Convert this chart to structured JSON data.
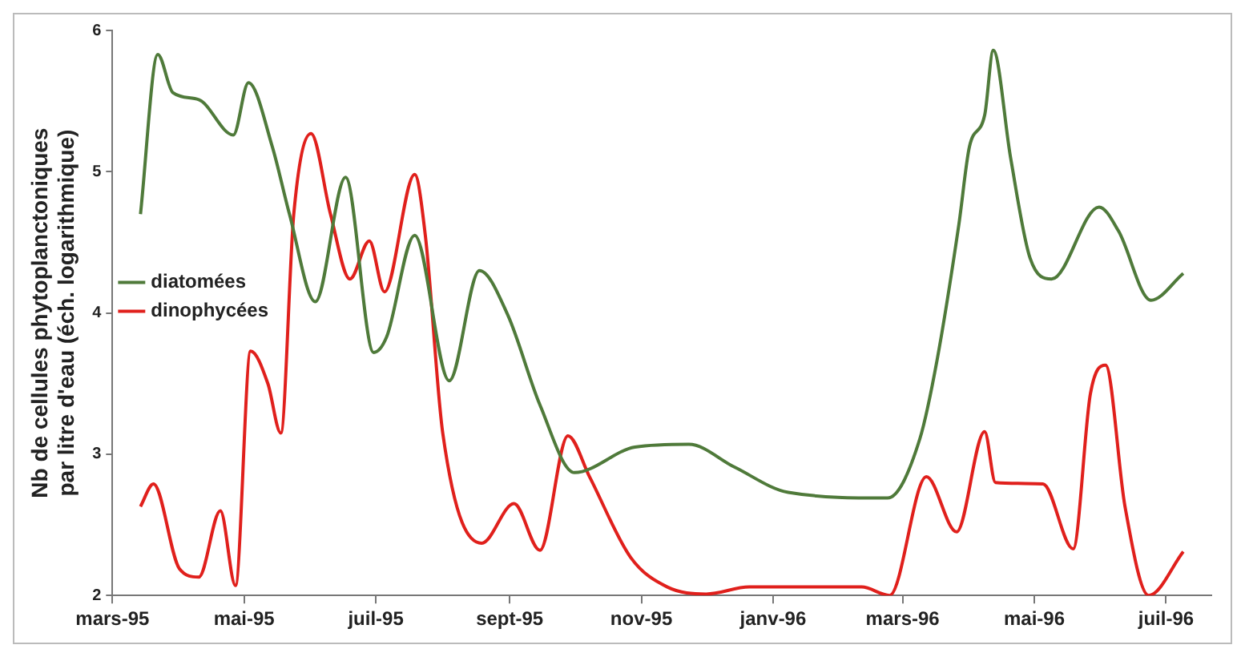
{
  "chart_data": {
    "type": "line",
    "ylabel": "Nb de cellules phytoplanctoniques par litre d'eau (éch. logarithmique)",
    "xlim": [
      "1995-03-01",
      "1996-07-22"
    ],
    "xticks": [
      {
        "value": "1995-03-01",
        "label": "mars-95"
      },
      {
        "value": "1995-05-01",
        "label": "mai-95"
      },
      {
        "value": "1995-07-01",
        "label": "juil-95"
      },
      {
        "value": "1995-09-01",
        "label": "sept-95"
      },
      {
        "value": "1995-11-01",
        "label": "nov-95"
      },
      {
        "value": "1996-01-01",
        "label": "janv-96"
      },
      {
        "value": "1996-03-01",
        "label": "mars-96"
      },
      {
        "value": "1996-05-01",
        "label": "mai-96"
      },
      {
        "value": "1996-07-01",
        "label": "juil-96"
      }
    ],
    "ylim": [
      2,
      6
    ],
    "yticks": [
      2,
      3,
      4,
      5,
      6
    ],
    "grid": false,
    "legend": "top",
    "marker": "none",
    "line_style": "solid",
    "series": [
      {
        "name": "diatomées",
        "color": "#4f7a3a",
        "x": [
          "1995-03-14",
          "1995-03-22",
          "1995-03-29",
          "1995-04-10",
          "1995-04-26",
          "1995-05-03",
          "1995-05-14",
          "1995-05-22",
          "1995-06-03",
          "1995-06-17",
          "1995-06-30",
          "1995-07-06",
          "1995-07-19",
          "1995-08-04",
          "1995-08-18",
          "1995-08-31",
          "1995-09-15",
          "1995-10-01",
          "1995-10-29",
          "1995-11-23",
          "1995-12-14",
          "1996-01-08",
          "1996-02-23",
          "1996-03-09",
          "1996-03-17",
          "1996-03-27",
          "1996-04-01",
          "1996-04-08",
          "1996-04-12",
          "1996-04-20",
          "1996-04-29",
          "1996-05-09",
          "1996-05-31",
          "1996-06-09",
          "1996-06-24",
          "1996-07-09"
        ],
        "values": [
          4.7,
          5.83,
          5.56,
          5.51,
          5.26,
          5.63,
          5.18,
          4.7,
          4.08,
          4.96,
          3.72,
          3.83,
          4.55,
          3.52,
          4.3,
          3.99,
          3.35,
          2.87,
          3.05,
          3.07,
          2.91,
          2.73,
          2.69,
          3.11,
          3.67,
          4.62,
          5.18,
          5.4,
          5.86,
          5.1,
          4.39,
          4.24,
          4.75,
          4.58,
          4.09,
          4.28
        ]
      },
      {
        "name": "dinophycées",
        "color": "#e0201c",
        "x": [
          "1995-03-14",
          "1995-03-20",
          "1995-04-01",
          "1995-04-10",
          "1995-04-20",
          "1995-04-27",
          "1995-05-04",
          "1995-05-12",
          "1995-05-18",
          "1995-05-24",
          "1995-06-01",
          "1995-06-10",
          "1995-06-19",
          "1995-06-28",
          "1995-07-05",
          "1995-07-19",
          "1995-07-24",
          "1995-08-01",
          "1995-08-19",
          "1995-09-03",
          "1995-09-15",
          "1995-09-28",
          "1995-10-08",
          "1995-10-27",
          "1995-11-13",
          "1995-12-01",
          "1995-12-21",
          "1996-02-11",
          "1996-02-24",
          "1996-03-12",
          "1996-03-26",
          "1996-04-08",
          "1996-04-13",
          "1996-05-05",
          "1996-05-19",
          "1996-05-27",
          "1996-06-03",
          "1996-06-12",
          "1996-06-23",
          "1996-07-09"
        ],
        "values": [
          2.63,
          2.79,
          2.19,
          2.13,
          2.6,
          2.07,
          3.73,
          3.5,
          3.15,
          4.7,
          5.27,
          4.7,
          4.24,
          4.51,
          4.15,
          4.98,
          4.54,
          3.15,
          2.37,
          2.65,
          2.32,
          3.13,
          2.84,
          2.27,
          2.06,
          2.01,
          2.06,
          2.06,
          2.0,
          2.84,
          2.45,
          3.16,
          2.8,
          2.79,
          2.33,
          3.43,
          3.63,
          2.63,
          2.0,
          2.31
        ]
      }
    ]
  }
}
